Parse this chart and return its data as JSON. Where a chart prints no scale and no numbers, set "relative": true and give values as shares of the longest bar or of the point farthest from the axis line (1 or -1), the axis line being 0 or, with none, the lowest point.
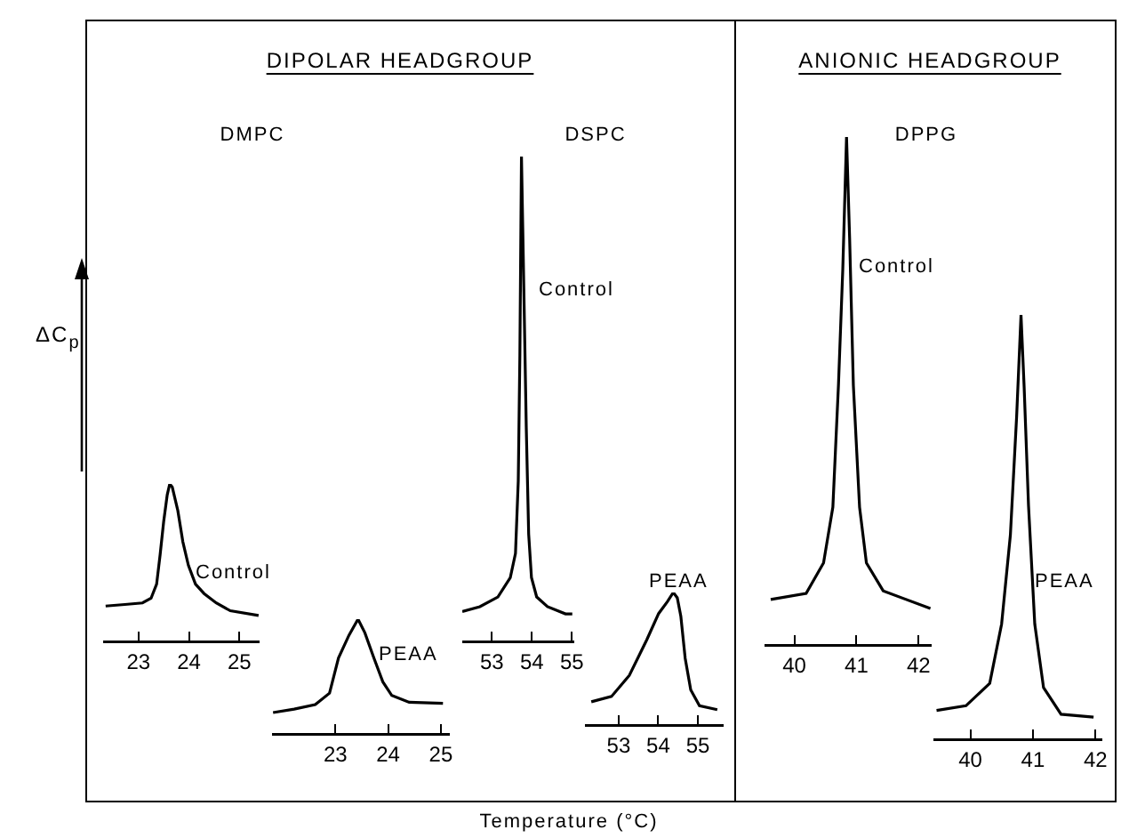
{
  "chart_data": [
    {
      "type": "line",
      "title": "DIPOLAR HEADGROUP",
      "subtitle": "DMPC",
      "ylabel": "ΔC$_{p}$",
      "relative": true,
      "tick_labels": "x",
      "xlim": [
        22.3,
        25.4
      ],
      "xticks": [
        23,
        24,
        25
      ],
      "series": [
        {
          "name": "Control",
          "color": "#000000",
          "x": [
            22.35,
            22.73,
            23.08,
            23.25,
            23.36,
            23.43,
            23.5,
            23.57,
            23.62,
            23.67,
            23.78,
            23.88,
            23.99,
            24.13,
            24.3,
            24.54,
            24.82,
            25.38
          ],
          "values": [
            0.22,
            0.23,
            0.24,
            0.27,
            0.36,
            0.55,
            0.76,
            0.93,
            1.0,
            0.98,
            0.83,
            0.63,
            0.48,
            0.36,
            0.3,
            0.24,
            0.19,
            0.16
          ]
        }
      ]
    },
    {
      "type": "line",
      "relative": true,
      "tick_labels": "x",
      "xlim": [
        21.8,
        25.17
      ],
      "xticks": [
        23,
        24,
        25
      ],
      "series": [
        {
          "name": "PEAA",
          "color": "#000000",
          "x": [
            21.82,
            22.22,
            22.62,
            22.89,
            23.06,
            23.26,
            23.43,
            23.56,
            23.73,
            23.9,
            24.07,
            24.4,
            25.04
          ],
          "values": [
            0.18,
            0.21,
            0.25,
            0.35,
            0.66,
            0.86,
            1.0,
            0.88,
            0.66,
            0.45,
            0.33,
            0.27,
            0.26
          ]
        }
      ]
    },
    {
      "type": "line",
      "subtitle": "DSPC",
      "xlabel": "Temperature (°C)",
      "relative": true,
      "tick_labels": "x",
      "xlim": [
        52.26,
        55.06
      ],
      "xticks": [
        53,
        54,
        55
      ],
      "series": [
        {
          "name": "Control",
          "color": "#000000",
          "x": [
            52.26,
            52.7,
            53.15,
            53.46,
            53.59,
            53.66,
            53.7,
            53.74,
            53.79,
            53.86,
            53.92,
            53.99,
            54.12,
            54.39,
            54.84,
            55.01
          ],
          "values": [
            0.06,
            0.07,
            0.09,
            0.13,
            0.18,
            0.33,
            0.59,
            1.0,
            0.77,
            0.44,
            0.22,
            0.13,
            0.09,
            0.07,
            0.055,
            0.055
          ]
        }
      ]
    },
    {
      "type": "line",
      "relative": true,
      "tick_labels": "x",
      "xlim": [
        52.15,
        55.65
      ],
      "xticks": [
        53,
        54,
        55
      ],
      "series": [
        {
          "name": "PEAA",
          "color": "#000000",
          "x": [
            52.31,
            52.82,
            53.27,
            53.71,
            54.01,
            54.23,
            54.38,
            54.48,
            54.57,
            54.68,
            54.82,
            55.04,
            55.49
          ],
          "values": [
            0.17,
            0.21,
            0.37,
            0.64,
            0.84,
            0.93,
            1.0,
            0.96,
            0.82,
            0.5,
            0.26,
            0.14,
            0.11
          ]
        }
      ]
    },
    {
      "type": "line",
      "title": "ANIONIC HEADGROUP",
      "subtitle": "DPPG",
      "relative": true,
      "tick_labels": "x",
      "xlim": [
        39.52,
        42.21
      ],
      "xticks": [
        40,
        41,
        42
      ],
      "series": [
        {
          "name": "Control",
          "color": "#000000",
          "x": [
            39.62,
            40.19,
            40.47,
            40.62,
            40.71,
            40.78,
            40.84,
            40.89,
            40.95,
            41.05,
            41.16,
            41.43,
            42.19
          ],
          "values": [
            0.088,
            0.1,
            0.16,
            0.27,
            0.51,
            0.74,
            1.0,
            0.8,
            0.51,
            0.27,
            0.16,
            0.105,
            0.07
          ]
        }
      ]
    },
    {
      "type": "line",
      "relative": true,
      "tick_labels": "x",
      "xlim": [
        39.41,
        42.11
      ],
      "xticks": [
        40,
        41,
        42
      ],
      "series": [
        {
          "name": "PEAA",
          "color": "#000000",
          "x": [
            39.46,
            39.93,
            40.31,
            40.5,
            40.64,
            40.74,
            40.81,
            40.86,
            40.93,
            41.03,
            41.17,
            41.45,
            41.97
          ],
          "values": [
            0.066,
            0.077,
            0.13,
            0.27,
            0.48,
            0.76,
            1.0,
            0.83,
            0.55,
            0.27,
            0.12,
            0.057,
            0.05
          ]
        }
      ]
    }
  ]
}
